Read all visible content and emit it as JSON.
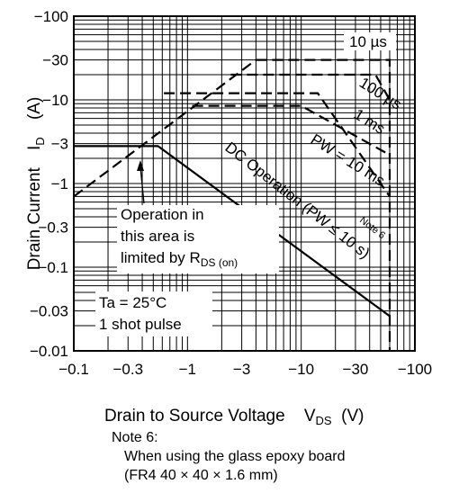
{
  "chart_data": {
    "type": "line",
    "xscale": "log",
    "yscale": "log",
    "xlim": [
      -0.1,
      -100
    ],
    "ylim": [
      -0.01,
      -100
    ],
    "x_ticks": [
      "−0.1",
      "−0.3",
      "−1",
      "−3",
      "−10",
      "−30",
      "−100"
    ],
    "y_ticks": [
      "−100",
      "−30",
      "−10",
      "−3",
      "−1",
      "−0.3",
      "−0.1",
      "−0.03",
      "−0.01"
    ],
    "x_tick_values": [
      -0.1,
      -0.3,
      -1,
      -3,
      -10,
      -30,
      -100
    ],
    "y_tick_values": [
      -100,
      -30,
      -10,
      -3,
      -1,
      -0.3,
      -0.1,
      -0.03,
      -0.01
    ],
    "grid": true,
    "xlabel": {
      "main": "Drain to Source Voltage",
      "symbol": "V",
      "sub": "DS",
      "unit": "(V)"
    },
    "ylabel": {
      "main": "Drain Current",
      "symbol": "I",
      "sub": "D",
      "unit": "(A)"
    },
    "series": [
      {
        "name": "DC Operation (PW ≤ 10 s)",
        "style": "solid",
        "color": "#000000",
        "points": [
          [
            -0.1,
            -2.8
          ],
          [
            -0.55,
            -2.8
          ],
          [
            -60,
            -0.026
          ]
        ]
      },
      {
        "name": "10 µs",
        "style": "dashed",
        "color": "#000000",
        "points": [
          [
            -4,
            -30
          ],
          [
            -60,
            -30
          ],
          [
            -60,
            -0.01
          ]
        ]
      },
      {
        "name": "100 µs",
        "style": "dashed",
        "color": "#000000",
        "points": [
          [
            -2.4,
            -20
          ],
          [
            -45,
            -20
          ],
          [
            -60,
            -10
          ]
        ]
      },
      {
        "name": "1 ms",
        "style": "dashed",
        "color": "#000000",
        "points": [
          [
            -1.1,
            -8.5
          ],
          [
            -10,
            -8.5
          ],
          [
            -60,
            -2.2
          ]
        ]
      },
      {
        "name": "PW = 10 ms",
        "style": "dashed",
        "color": "#000000",
        "points": [
          [
            -0.62,
            -12
          ],
          [
            -14,
            -12
          ],
          [
            -60,
            -0.7
          ]
        ]
      },
      {
        "name": "R_DS(on) limit",
        "style": "dashed",
        "color": "#000000",
        "points": [
          [
            -0.1,
            -0.7
          ],
          [
            -4,
            -30
          ]
        ]
      }
    ],
    "annotations": {
      "l10us": "10 µs",
      "l100us": "100 µs",
      "l1ms": "1 ms",
      "l10ms": "PW = 10 ms",
      "dc": "DC Operation (PW ≤ 10 s)",
      "note6": "Note 6",
      "area_line1": "Operation in",
      "area_line2": "this area is",
      "area_line3_main": "limited by R",
      "area_line3_sub": "DS (on)",
      "ta": "Ta = 25°C",
      "pulse": "1 shot pulse"
    }
  },
  "note": {
    "title": "Note 6:",
    "line1": "When using the glass epoxy board",
    "line2": "(FR4  40 × 40 × 1.6 mm)"
  }
}
